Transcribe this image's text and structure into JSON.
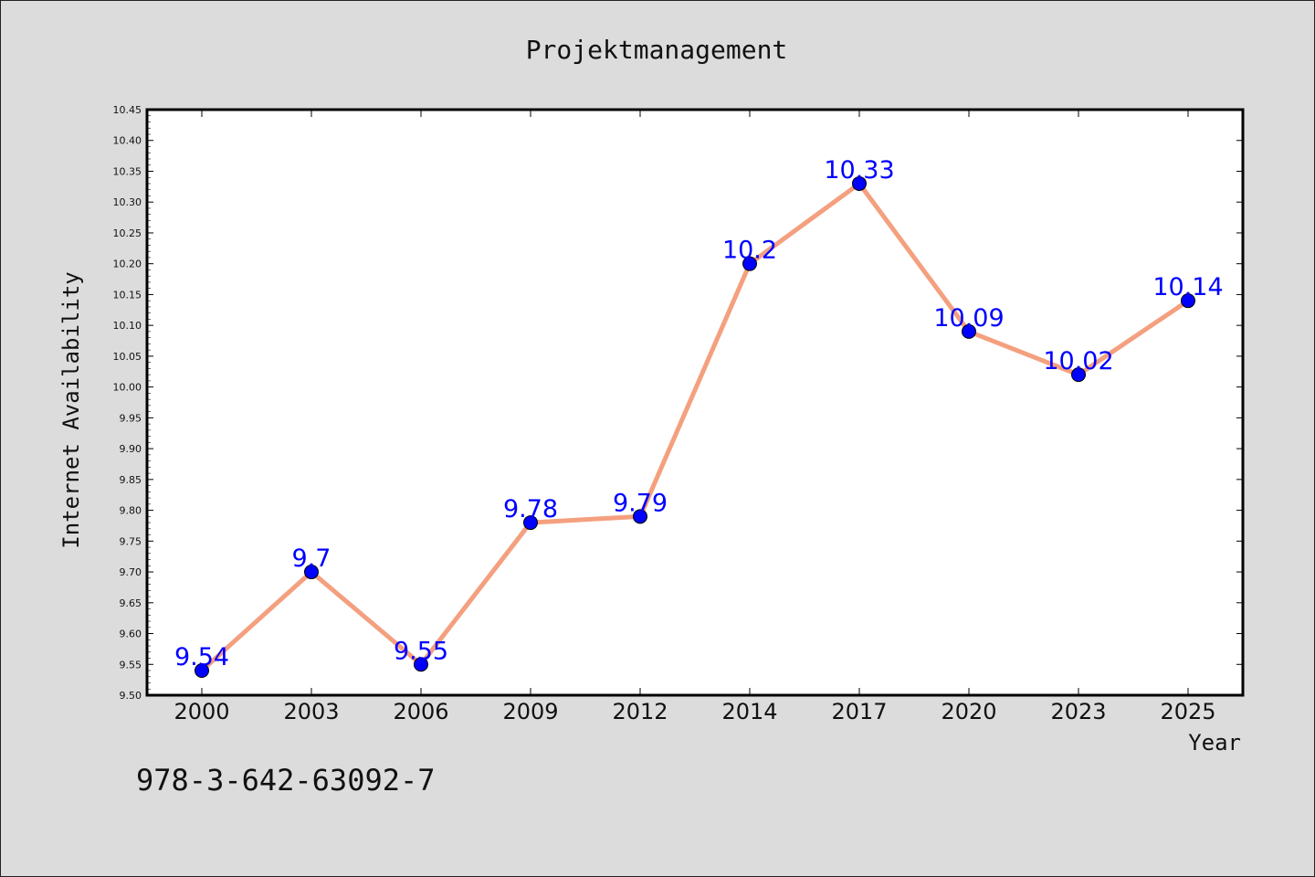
{
  "footer": {
    "code": "978-3-642-63092-7"
  },
  "colors": {
    "background": "#dcdcdc",
    "plot_area": "#ffffff",
    "line": "#f4a07f",
    "marker": "#0000ff",
    "data_label": "#0000ff"
  },
  "chart_data": {
    "type": "line",
    "title": "Projektmanagement",
    "xlabel": "Year",
    "ylabel": "Internet Availability",
    "categories": [
      "2000",
      "2003",
      "2006",
      "2009",
      "2012",
      "2014",
      "2017",
      "2020",
      "2023",
      "2025"
    ],
    "series": [
      {
        "values": [
          9.54,
          9.7,
          9.55,
          9.78,
          9.79,
          10.2,
          10.33,
          10.09,
          10.02,
          10.14
        ],
        "labels": [
          "9.54",
          "9.7",
          "9.55",
          "9.78",
          "9.79",
          "10.2",
          "10.33",
          "10.09",
          "10.02",
          "10.14"
        ]
      }
    ],
    "ylim": [
      9.5,
      10.45
    ],
    "y_ticks": [
      "9.50",
      "9.55",
      "9.60",
      "9.65",
      "9.70",
      "9.75",
      "9.80",
      "9.85",
      "9.90",
      "9.95",
      "10.00",
      "10.05",
      "10.10",
      "10.15",
      "10.20",
      "10.25",
      "10.30",
      "10.35",
      "10.40",
      "10.45"
    ],
    "grid": false,
    "legend": "none",
    "markers": "circle",
    "data_labels": true
  }
}
